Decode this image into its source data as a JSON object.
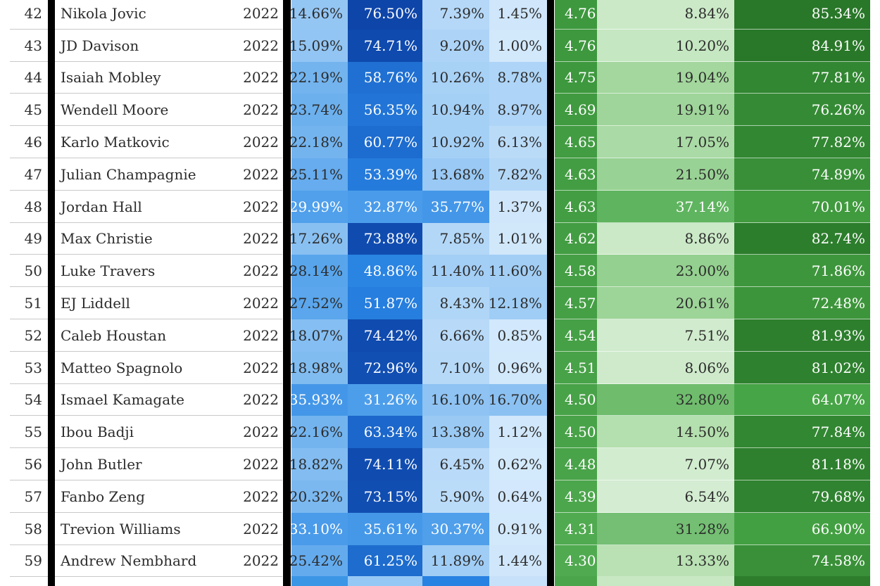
{
  "rows": [
    {
      "rank": "42",
      "name": "Nikola Jovic",
      "year": "2022",
      "p1": "14.66%",
      "p2": "76.50%",
      "p3": "7.39%",
      "p4": "1.45%",
      "score": "4.76",
      "g1": "8.84%",
      "g2": "85.34%"
    },
    {
      "rank": "43",
      "name": "JD Davison",
      "year": "2022",
      "p1": "15.09%",
      "p2": "74.71%",
      "p3": "9.20%",
      "p4": "1.00%",
      "score": "4.76",
      "g1": "10.20%",
      "g2": "84.91%"
    },
    {
      "rank": "44",
      "name": "Isaiah Mobley",
      "year": "2022",
      "p1": "22.19%",
      "p2": "58.76%",
      "p3": "10.26%",
      "p4": "8.78%",
      "score": "4.75",
      "g1": "19.04%",
      "g2": "77.81%"
    },
    {
      "rank": "45",
      "name": "Wendell Moore",
      "year": "2022",
      "p1": "23.74%",
      "p2": "56.35%",
      "p3": "10.94%",
      "p4": "8.97%",
      "score": "4.69",
      "g1": "19.91%",
      "g2": "76.26%"
    },
    {
      "rank": "46",
      "name": "Karlo Matkovic",
      "year": "2022",
      "p1": "22.18%",
      "p2": "60.77%",
      "p3": "10.92%",
      "p4": "6.13%",
      "score": "4.65",
      "g1": "17.05%",
      "g2": "77.82%"
    },
    {
      "rank": "47",
      "name": "Julian Champagnie",
      "year": "2022",
      "p1": "25.11%",
      "p2": "53.39%",
      "p3": "13.68%",
      "p4": "7.82%",
      "score": "4.63",
      "g1": "21.50%",
      "g2": "74.89%"
    },
    {
      "rank": "48",
      "name": "Jordan Hall",
      "year": "2022",
      "p1": "29.99%",
      "p2": "32.87%",
      "p3": "35.77%",
      "p4": "1.37%",
      "score": "4.63",
      "g1": "37.14%",
      "g2": "70.01%"
    },
    {
      "rank": "49",
      "name": "Max Christie",
      "year": "2022",
      "p1": "17.26%",
      "p2": "73.88%",
      "p3": "7.85%",
      "p4": "1.01%",
      "score": "4.62",
      "g1": "8.86%",
      "g2": "82.74%"
    },
    {
      "rank": "50",
      "name": "Luke Travers",
      "year": "2022",
      "p1": "28.14%",
      "p2": "48.86%",
      "p3": "11.40%",
      "p4": "11.60%",
      "score": "4.58",
      "g1": "23.00%",
      "g2": "71.86%"
    },
    {
      "rank": "51",
      "name": "EJ Liddell",
      "year": "2022",
      "p1": "27.52%",
      "p2": "51.87%",
      "p3": "8.43%",
      "p4": "12.18%",
      "score": "4.57",
      "g1": "20.61%",
      "g2": "72.48%"
    },
    {
      "rank": "52",
      "name": "Caleb Houstan",
      "year": "2022",
      "p1": "18.07%",
      "p2": "74.42%",
      "p3": "6.66%",
      "p4": "0.85%",
      "score": "4.54",
      "g1": "7.51%",
      "g2": "81.93%"
    },
    {
      "rank": "53",
      "name": "Matteo Spagnolo",
      "year": "2022",
      "p1": "18.98%",
      "p2": "72.96%",
      "p3": "7.10%",
      "p4": "0.96%",
      "score": "4.51",
      "g1": "8.06%",
      "g2": "81.02%"
    },
    {
      "rank": "54",
      "name": "Ismael Kamagate",
      "year": "2022",
      "p1": "35.93%",
      "p2": "31.26%",
      "p3": "16.10%",
      "p4": "16.70%",
      "score": "4.50",
      "g1": "32.80%",
      "g2": "64.07%"
    },
    {
      "rank": "55",
      "name": "Ibou Badji",
      "year": "2022",
      "p1": "22.16%",
      "p2": "63.34%",
      "p3": "13.38%",
      "p4": "1.12%",
      "score": "4.50",
      "g1": "14.50%",
      "g2": "77.84%"
    },
    {
      "rank": "56",
      "name": "John Butler",
      "year": "2022",
      "p1": "18.82%",
      "p2": "74.11%",
      "p3": "6.45%",
      "p4": "0.62%",
      "score": "4.48",
      "g1": "7.07%",
      "g2": "81.18%"
    },
    {
      "rank": "57",
      "name": "Fanbo Zeng",
      "year": "2022",
      "p1": "20.32%",
      "p2": "73.15%",
      "p3": "5.90%",
      "p4": "0.64%",
      "score": "4.39",
      "g1": "6.54%",
      "g2": "79.68%"
    },
    {
      "rank": "58",
      "name": "Trevion Williams",
      "year": "2022",
      "p1": "33.10%",
      "p2": "35.61%",
      "p3": "30.37%",
      "p4": "0.91%",
      "score": "4.31",
      "g1": "31.28%",
      "g2": "66.90%"
    },
    {
      "rank": "59",
      "name": "Andrew Nembhard",
      "year": "2022",
      "p1": "25.42%",
      "p2": "61.25%",
      "p3": "11.89%",
      "p4": "1.44%",
      "score": "4.30",
      "g1": "13.33%",
      "g2": "74.58%"
    }
  ]
}
